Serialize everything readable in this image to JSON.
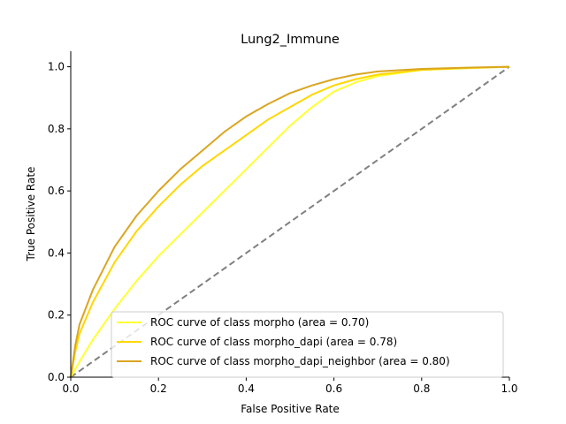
{
  "chart_data": {
    "type": "line",
    "title": "Lung2_Immune",
    "xlabel": "False Positive Rate",
    "ylabel": "True Positive Rate",
    "xlim": [
      0.0,
      1.0
    ],
    "ylim": [
      0.0,
      1.05
    ],
    "xticks": [
      0.0,
      0.2,
      0.4,
      0.6,
      0.8,
      1.0
    ],
    "yticks": [
      0.0,
      0.2,
      0.4,
      0.6,
      0.8,
      1.0
    ],
    "xtick_labels": [
      "0.0",
      "0.2",
      "0.4",
      "0.6",
      "0.8",
      "1.0"
    ],
    "ytick_labels": [
      "0.0",
      "0.2",
      "0.4",
      "0.6",
      "0.8",
      "1.0"
    ],
    "grid": false,
    "legend_position": "lower-right",
    "series": [
      {
        "name": "ROC curve of class morpho (area = 0.70)",
        "color": "#ffff33",
        "dash": "solid",
        "x": [
          0,
          0.02,
          0.05,
          0.1,
          0.15,
          0.2,
          0.25,
          0.3,
          0.35,
          0.4,
          0.45,
          0.5,
          0.55,
          0.6,
          0.65,
          0.7,
          0.8,
          0.9,
          1.0
        ],
        "y": [
          0,
          0.05,
          0.12,
          0.22,
          0.31,
          0.39,
          0.46,
          0.53,
          0.6,
          0.67,
          0.74,
          0.81,
          0.87,
          0.92,
          0.95,
          0.97,
          0.99,
          0.995,
          1.0
        ]
      },
      {
        "name": "ROC curve of class morpho_dapi (area = 0.78)",
        "color": "#ffd700",
        "dash": "solid",
        "x": [
          0,
          0.01,
          0.02,
          0.05,
          0.1,
          0.15,
          0.2,
          0.25,
          0.3,
          0.35,
          0.4,
          0.45,
          0.5,
          0.55,
          0.6,
          0.65,
          0.7,
          0.8,
          0.9,
          1.0
        ],
        "y": [
          0,
          0.08,
          0.14,
          0.24,
          0.37,
          0.47,
          0.55,
          0.62,
          0.68,
          0.73,
          0.78,
          0.83,
          0.87,
          0.91,
          0.94,
          0.96,
          0.975,
          0.99,
          0.996,
          1.0
        ]
      },
      {
        "name": "ROC curve of class morpho_dapi_neighbor (area = 0.80)",
        "color": "#daa520",
        "dash": "solid",
        "x": [
          0,
          0.01,
          0.02,
          0.05,
          0.1,
          0.15,
          0.2,
          0.25,
          0.3,
          0.35,
          0.4,
          0.45,
          0.5,
          0.55,
          0.6,
          0.65,
          0.7,
          0.8,
          0.9,
          1.0
        ],
        "y": [
          0,
          0.1,
          0.17,
          0.28,
          0.42,
          0.52,
          0.6,
          0.67,
          0.73,
          0.79,
          0.84,
          0.88,
          0.915,
          0.94,
          0.96,
          0.975,
          0.985,
          0.993,
          0.997,
          1.0
        ]
      },
      {
        "name": "",
        "color": "#808080",
        "dash": "dashed",
        "x": [
          0,
          1
        ],
        "y": [
          0,
          1
        ]
      }
    ]
  }
}
